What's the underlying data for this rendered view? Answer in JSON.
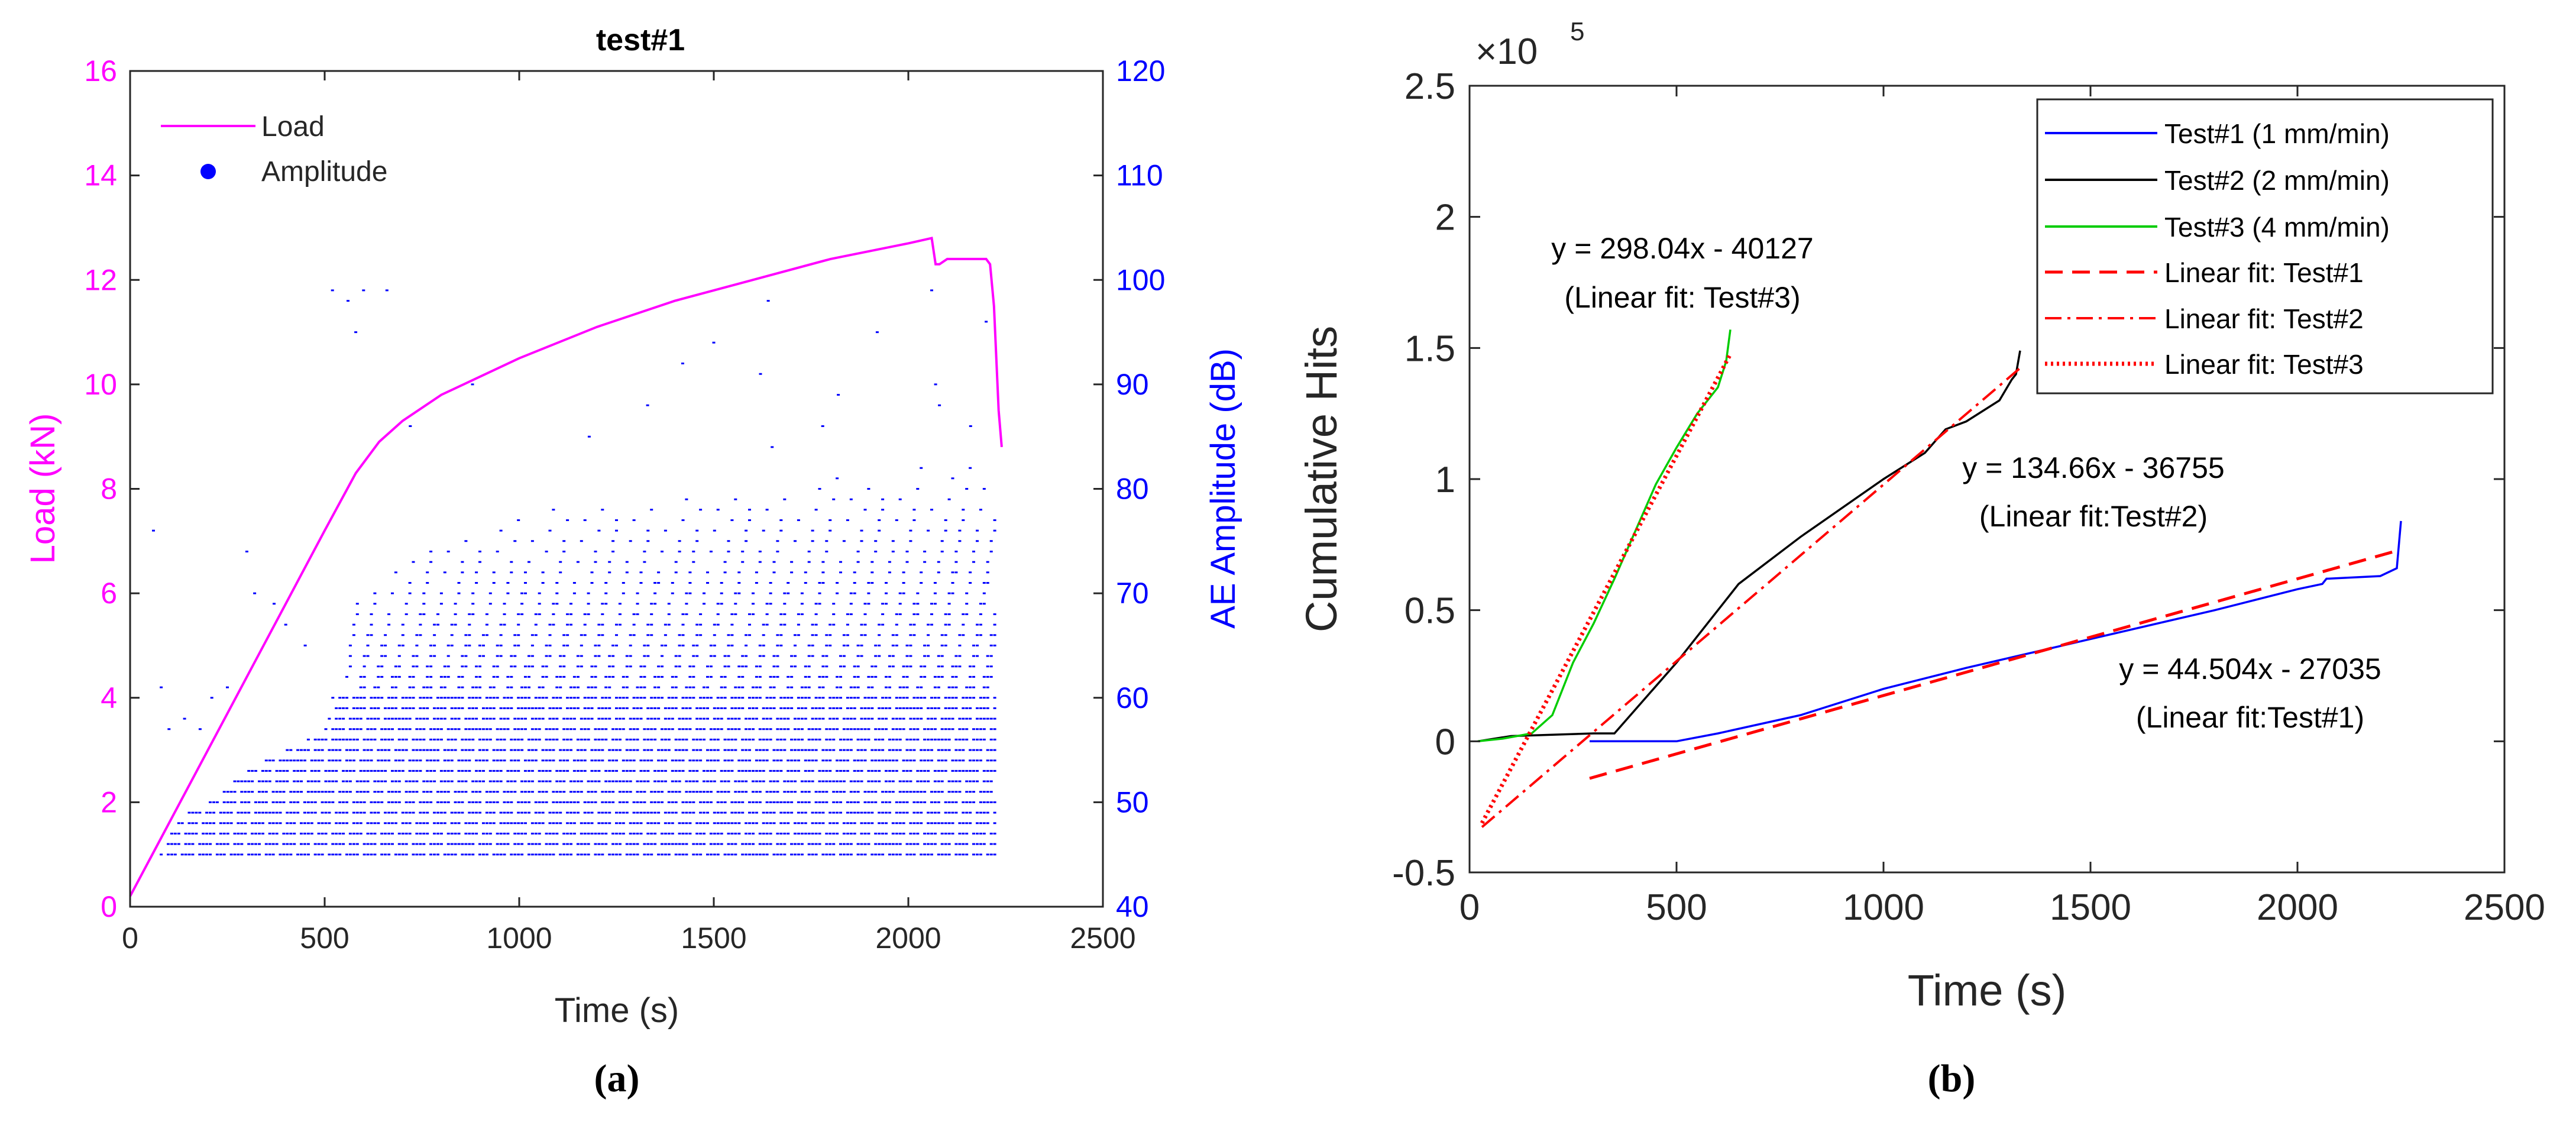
{
  "chart_data": [
    {
      "panel_label": "(a)",
      "type": "line",
      "title": "test#1",
      "xlabel": "Time (s)",
      "ylabel": "Load (kN)",
      "y2label": "AE Amplitude (dB)",
      "xlim": [
        0,
        2500
      ],
      "ylim": [
        0,
        16
      ],
      "y2lim": [
        40,
        120
      ],
      "xticks": [
        "0",
        "500",
        "1000",
        "1500",
        "2000",
        "2500"
      ],
      "yticks": [
        "0",
        "2",
        "4",
        "6",
        "8",
        "10",
        "12",
        "14",
        "16"
      ],
      "y2ticks": [
        "40",
        "50",
        "60",
        "70",
        "80",
        "90",
        "100",
        "110",
        "120"
      ],
      "legend": {
        "position": "top-left",
        "entries": [
          "Load",
          "Amplitude"
        ]
      },
      "colors": {
        "load": "#ff00ff",
        "amplitude": "#0000ff",
        "axis": "#262626"
      },
      "series": [
        {
          "name": "Load",
          "axis": "left",
          "points": [
            [
              0,
              0.2
            ],
            [
              100,
              1.6
            ],
            [
              200,
              3.0
            ],
            [
              300,
              4.4
            ],
            [
              400,
              5.8
            ],
            [
              500,
              7.2
            ],
            [
              580,
              8.3
            ],
            [
              640,
              8.9
            ],
            [
              700,
              9.3
            ],
            [
              800,
              9.8
            ],
            [
              1000,
              10.5
            ],
            [
              1200,
              11.1
            ],
            [
              1400,
              11.6
            ],
            [
              1600,
              12.0
            ],
            [
              1800,
              12.4
            ],
            [
              2000,
              12.7
            ],
            [
              2060,
              12.8
            ],
            [
              2070,
              12.3
            ],
            [
              2080,
              12.3
            ],
            [
              2100,
              12.4
            ],
            [
              2200,
              12.4
            ],
            [
              2210,
              12.3
            ],
            [
              2220,
              11.5
            ],
            [
              2232,
              9.5
            ],
            [
              2240,
              8.8
            ]
          ]
        },
        {
          "name": "Amplitude",
          "axis": "right",
          "type": "scatter",
          "band_points": [
            [
              80,
              45
            ],
            [
              100,
              47
            ],
            [
              150,
              49
            ],
            [
              200,
              50
            ],
            [
              300,
              53
            ],
            [
              400,
              55
            ],
            [
              500,
              57
            ],
            [
              580,
              70
            ],
            [
              800,
              76
            ],
            [
              1000,
              78
            ],
            [
              1500,
              80
            ],
            [
              2000,
              82
            ],
            [
              2230,
              84
            ]
          ],
          "sample_points": [
            [
              60,
              76
            ],
            [
              80,
              61
            ],
            [
              100,
              57
            ],
            [
              140,
              58
            ],
            [
              180,
              57
            ],
            [
              210,
              60
            ],
            [
              250,
              61
            ],
            [
              300,
              74
            ],
            [
              320,
              70
            ],
            [
              370,
              69
            ],
            [
              400,
              67
            ],
            [
              450,
              65
            ],
            [
              520,
              99
            ],
            [
              560,
              98
            ],
            [
              580,
              95
            ],
            [
              600,
              99
            ],
            [
              660,
              99
            ],
            [
              720,
              86
            ],
            [
              880,
              90
            ],
            [
              1180,
              85
            ],
            [
              1330,
              88
            ],
            [
              1420,
              92
            ],
            [
              1500,
              94
            ],
            [
              1620,
              91
            ],
            [
              1640,
              98
            ],
            [
              1650,
              84
            ],
            [
              1780,
              86
            ],
            [
              1820,
              89
            ],
            [
              1920,
              95
            ],
            [
              2060,
              99
            ],
            [
              2070,
              90
            ],
            [
              2080,
              88
            ],
            [
              2160,
              86
            ],
            [
              2200,
              96
            ]
          ]
        }
      ]
    },
    {
      "panel_label": "(b)",
      "type": "line",
      "title": "",
      "xlabel": "Time (s)",
      "ylabel": "Cumulative Hits",
      "scale_label_prefix": "×10",
      "scale_label_exp": "5",
      "xlim": [
        0,
        2500
      ],
      "ylim": [
        -0.5,
        2.5
      ],
      "xticks": [
        "0",
        "500",
        "1000",
        "1500",
        "2000",
        "2500"
      ],
      "yticks": [
        "-0.5",
        "0",
        "0.5",
        "1",
        "1.5",
        "2",
        "2.5"
      ],
      "legend": {
        "position": "top-right",
        "entries": [
          "Test#1 (1 mm/min)",
          "Test#2 (2 mm/min)",
          "Test#3 (4 mm/min)",
          "Linear fit: Test#1",
          "Linear fit: Test#2",
          "Linear fit: Test#3"
        ]
      },
      "annotations": [
        {
          "line1": "y = 298.04x - 40127",
          "line2": "(Linear fit: Test#3)"
        },
        {
          "line1": "y = 134.66x - 36755",
          "line2": "(Linear fit:Test#2)"
        },
        {
          "line1": "y = 44.504x - 27035",
          "line2": "(Linear fit:Test#1)"
        }
      ],
      "colors": {
        "test1": "#0000ff",
        "test2": "#000000",
        "test3": "#00cc00",
        "fit": "#ff0000",
        "axis": "#262626"
      },
      "series": [
        {
          "name": "Test#1 (1 mm/min)",
          "points": [
            [
              290,
              0
            ],
            [
              500,
              0
            ],
            [
              600,
              0.03
            ],
            [
              800,
              0.1
            ],
            [
              1000,
              0.2
            ],
            [
              1200,
              0.28
            ],
            [
              1500,
              0.39
            ],
            [
              1800,
              0.5
            ],
            [
              2000,
              0.58
            ],
            [
              2060,
              0.6
            ],
            [
              2070,
              0.62
            ],
            [
              2200,
              0.63
            ],
            [
              2240,
              0.66
            ],
            [
              2250,
              0.84
            ]
          ]
        },
        {
          "name": "Test#2 (2 mm/min)",
          "points": [
            [
              20,
              0
            ],
            [
              100,
              0.02
            ],
            [
              200,
              0.025
            ],
            [
              300,
              0.03
            ],
            [
              350,
              0.03
            ],
            [
              400,
              0.12
            ],
            [
              500,
              0.3
            ],
            [
              650,
              0.6
            ],
            [
              800,
              0.78
            ],
            [
              1000,
              1.0
            ],
            [
              1100,
              1.1
            ],
            [
              1150,
              1.19
            ],
            [
              1200,
              1.22
            ],
            [
              1280,
              1.3
            ],
            [
              1310,
              1.38
            ],
            [
              1320,
              1.4
            ],
            [
              1330,
              1.49
            ]
          ]
        },
        {
          "name": "Test#3 (4 mm/min)",
          "points": [
            [
              20,
              0
            ],
            [
              80,
              0.01
            ],
            [
              150,
              0.03
            ],
            [
              200,
              0.1
            ],
            [
              250,
              0.3
            ],
            [
              300,
              0.45
            ],
            [
              350,
              0.62
            ],
            [
              400,
              0.8
            ],
            [
              450,
              0.98
            ],
            [
              500,
              1.12
            ],
            [
              550,
              1.25
            ],
            [
              600,
              1.35
            ],
            [
              620,
              1.45
            ],
            [
              630,
              1.57
            ]
          ]
        },
        {
          "name": "Linear fit: Test#1",
          "slope": 44.504,
          "intercept": -27035,
          "x_range": [
            290,
            2250
          ]
        },
        {
          "name": "Linear fit: Test#2",
          "slope": 134.66,
          "intercept": -36755,
          "x_range": [
            30,
            1330
          ]
        },
        {
          "name": "Linear fit: Test#3",
          "slope": 298.04,
          "intercept": -40127,
          "x_range": [
            30,
            630
          ]
        }
      ]
    }
  ]
}
